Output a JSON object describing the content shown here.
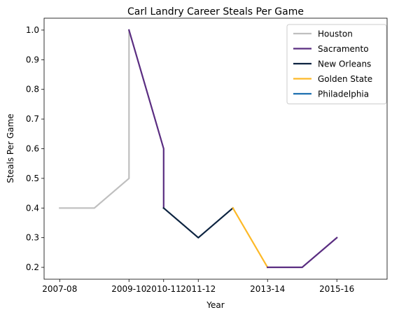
{
  "chart_data": {
    "type": "line",
    "title": "Carl Landry Career Steals Per Game",
    "xlabel": "Year",
    "ylabel": "Steals Per Game",
    "ylim": [
      0.16,
      1.04
    ],
    "x_ticks": [
      "2007-08",
      "2009-10",
      "2010-11",
      "2011-12",
      "2013-14",
      "2015-16"
    ],
    "y_ticks": [
      "0.2",
      "0.3",
      "0.4",
      "0.5",
      "0.6",
      "0.7",
      "0.8",
      "0.9",
      "1.0"
    ],
    "legend_position": "top-right",
    "grid": false,
    "series": [
      {
        "name": "Houston",
        "color": "#bfbfbf",
        "points": [
          {
            "season": "2007-08",
            "value": 0.4
          },
          {
            "season": "2008-09",
            "value": 0.4
          },
          {
            "season": "2009-10",
            "value": 0.5
          },
          {
            "season": "2009-10",
            "value": 1.0
          }
        ]
      },
      {
        "name": "Sacramento",
        "color": "#5a2d81",
        "points": [
          {
            "season": "2009-10",
            "value": 1.0
          },
          {
            "season": "2010-11",
            "value": 0.6
          },
          {
            "season": "2010-11",
            "value": 0.4
          }
        ]
      },
      {
        "name": "New Orleans",
        "color": "#0c2340",
        "points": [
          {
            "season": "2010-11",
            "value": 0.4
          },
          {
            "season": "2011-12",
            "value": 0.3
          },
          {
            "season": "2012-13",
            "value": 0.4
          }
        ]
      },
      {
        "name": "Golden State",
        "color": "#fdb927",
        "points": [
          {
            "season": "2012-13",
            "value": 0.4
          },
          {
            "season": "2013-14",
            "value": 0.2
          }
        ]
      },
      {
        "name": "Philadelphia",
        "color": "#1d6fb0",
        "points": []
      },
      {
        "name": "Sacramento",
        "color": "#5a2d81",
        "points": [
          {
            "season": "2013-14",
            "value": 0.2
          },
          {
            "season": "2014-15",
            "value": 0.2
          },
          {
            "season": "2015-16",
            "value": 0.3
          }
        ]
      }
    ]
  }
}
